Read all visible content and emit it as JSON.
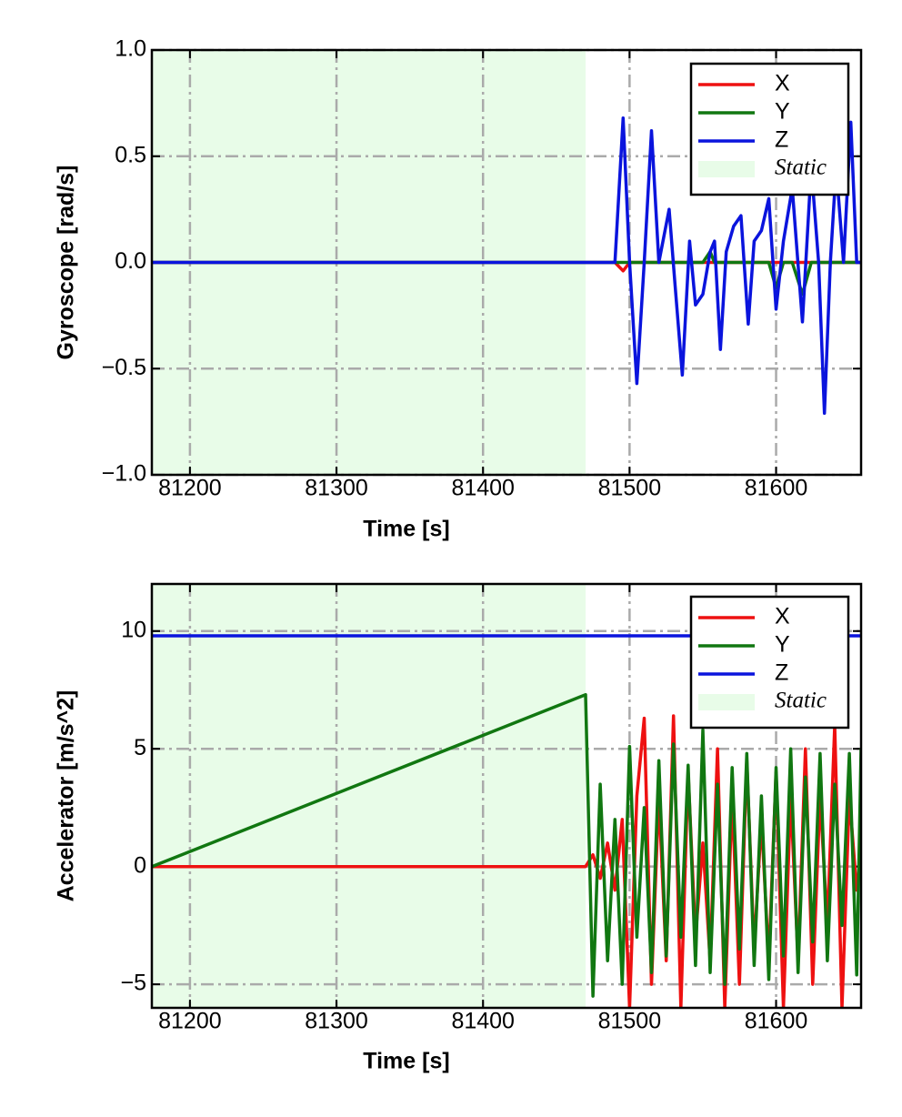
{
  "chart_data": [
    {
      "type": "line",
      "xlabel": "Time [s]",
      "ylabel": "Gyroscope [rad/s]",
      "x": [
        81174,
        81470,
        81490,
        81495.6,
        81500,
        81505,
        81510,
        81515,
        81520,
        81527,
        81531,
        81536,
        81541,
        81545,
        81550,
        81555,
        81558,
        81562,
        81566,
        81571,
        81576,
        81581,
        81585,
        81590,
        81595,
        81600,
        81605,
        81611,
        81618,
        81624,
        81629,
        81633,
        81637,
        81641,
        81646,
        81651,
        81655,
        81658
      ],
      "series": [
        {
          "name": "X",
          "color": "#ee1111",
          "values": [
            0,
            0,
            0,
            -0.04,
            0,
            0,
            0,
            0,
            0,
            0,
            0,
            0,
            0,
            0,
            0,
            0,
            0,
            0,
            0,
            0,
            0,
            0,
            0,
            0,
            0,
            0,
            0,
            0,
            0,
            0,
            0,
            0,
            0,
            0,
            0,
            0,
            0,
            0
          ]
        },
        {
          "name": "Y",
          "color": "#117711",
          "values": [
            0,
            0,
            0,
            0,
            0,
            0,
            0,
            0,
            0,
            0,
            0,
            0,
            0,
            0,
            0,
            0.05,
            0,
            0,
            0,
            0,
            0,
            0,
            0,
            0,
            0,
            -0.12,
            0,
            0,
            -0.15,
            0,
            0,
            0,
            0,
            0,
            0,
            0,
            0,
            0
          ]
        },
        {
          "name": "Z",
          "color": "#0a14dd",
          "values": [
            0,
            0,
            0,
            0.68,
            0,
            -0.57,
            0,
            0.62,
            0,
            0.25,
            -0.1,
            -0.53,
            0.1,
            -0.2,
            -0.15,
            0.05,
            0.1,
            -0.41,
            0.05,
            0.17,
            0.22,
            -0.29,
            0.1,
            0.15,
            0.3,
            -0.22,
            0.1,
            0.35,
            -0.28,
            0.45,
            0,
            -0.71,
            0,
            0.45,
            0,
            0.66,
            0,
            0
          ]
        }
      ],
      "span": {
        "name": "Static",
        "color": "#e8fce8",
        "x": [
          81174,
          81470
        ]
      },
      "xlim": [
        81174,
        81658
      ],
      "xticks": [
        81200,
        81300,
        81400,
        81500,
        81600
      ],
      "ylim": [
        -1,
        1
      ],
      "yticks": [
        {
          "value": -1,
          "label": "−1.0"
        },
        {
          "value": -0.5,
          "label": "−0.5"
        },
        {
          "value": 0,
          "label": "0.0"
        },
        0.5,
        {
          "value": 1,
          "label": "1.0"
        }
      ],
      "grid": true,
      "legend": "upper right"
    },
    {
      "type": "line",
      "xlabel": "Time [s]",
      "ylabel": "Accelerator [m/s^2]",
      "x": [
        81174,
        81470,
        81475,
        81480,
        81485,
        81490,
        81495,
        81500,
        81505,
        81510,
        81515,
        81520,
        81525,
        81530,
        81535,
        81540,
        81545,
        81550,
        81555,
        81560,
        81565,
        81570,
        81575,
        81580,
        81585,
        81590,
        81595,
        81600,
        81605,
        81610,
        81615,
        81620,
        81625,
        81630,
        81635,
        81640,
        81645,
        81650,
        81655,
        81658
      ],
      "series": [
        {
          "name": "X",
          "color": "#ee1111",
          "values": [
            0,
            0,
            0.5,
            -0.5,
            1,
            -1,
            2,
            -6,
            3,
            6.3,
            -5,
            3,
            -4,
            6.4,
            -6,
            4,
            -3,
            1,
            -4,
            5,
            -6,
            3,
            -5,
            4.5,
            -3.5,
            2,
            -4,
            4,
            -6,
            3,
            -4,
            5,
            -5,
            3,
            -2.5,
            6,
            -6,
            3,
            -1,
            0.5
          ]
        },
        {
          "name": "Y",
          "color": "#117711",
          "values": [
            0,
            7.3,
            -5.5,
            3.5,
            -4,
            2,
            -5,
            5.1,
            -3,
            2.5,
            -4.5,
            4.5,
            -3.8,
            5.2,
            -3,
            4.3,
            -4.2,
            5.8,
            -4.5,
            3.5,
            -5,
            4.2,
            -3.5,
            4.8,
            -4.2,
            3,
            -4.8,
            4.2,
            -3.8,
            5,
            -4.5,
            3.8,
            -3.2,
            4.8,
            -4,
            3.5,
            -2.5,
            4.8,
            -4.6,
            5
          ]
        },
        {
          "name": "Z",
          "color": "#0a14dd",
          "values": [
            9.8,
            9.8,
            9.8,
            9.8,
            9.8,
            9.8,
            9.8,
            9.8,
            9.8,
            9.8,
            9.8,
            9.8,
            9.8,
            9.8,
            9.8,
            9.8,
            9.8,
            9.8,
            9.8,
            9.8,
            9.8,
            9.8,
            9.8,
            9.8,
            9.8,
            9.8,
            9.8,
            9.8,
            9.8,
            9.8,
            9.8,
            9.8,
            9.8,
            9.8,
            9.8,
            9.8,
            9.8,
            9.8,
            9.8,
            9.8
          ]
        }
      ],
      "span": {
        "name": "Static",
        "color": "#e8fce8",
        "x": [
          81174,
          81470
        ]
      },
      "xlim": [
        81174,
        81658
      ],
      "xticks": [
        81200,
        81300,
        81400,
        81500,
        81600
      ],
      "ylim": [
        -6,
        12
      ],
      "yticks": [
        {
          "value": -5,
          "label": "−5"
        },
        0,
        5,
        10
      ],
      "grid": true,
      "legend": "upper right"
    }
  ]
}
